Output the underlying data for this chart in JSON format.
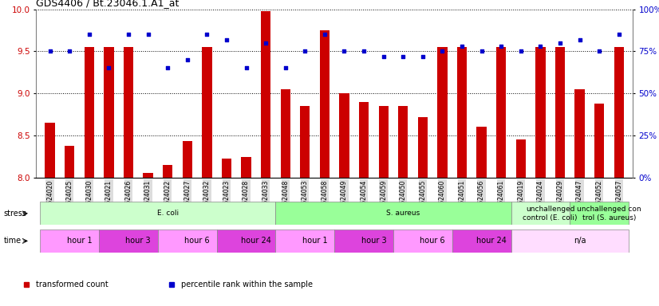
{
  "title": "GDS4406 / Bt.23046.1.A1_at",
  "samples": [
    "GSM624020",
    "GSM624025",
    "GSM624030",
    "GSM624021",
    "GSM624026",
    "GSM624031",
    "GSM624022",
    "GSM624027",
    "GSM624032",
    "GSM624023",
    "GSM624028",
    "GSM624033",
    "GSM624048",
    "GSM624053",
    "GSM624058",
    "GSM624049",
    "GSM624054",
    "GSM624059",
    "GSM624050",
    "GSM624055",
    "GSM624060",
    "GSM624051",
    "GSM624056",
    "GSM624061",
    "GSM624019",
    "GSM624024",
    "GSM624029",
    "GSM624047",
    "GSM624052",
    "GSM624057"
  ],
  "transformed_count": [
    8.65,
    8.38,
    9.55,
    9.55,
    9.55,
    8.05,
    8.15,
    8.43,
    9.55,
    8.22,
    8.24,
    9.98,
    9.05,
    8.85,
    9.75,
    9.0,
    8.9,
    8.85,
    8.85,
    8.72,
    9.55,
    9.55,
    8.6,
    9.55,
    8.45,
    9.55,
    9.55,
    9.05,
    8.88,
    9.55
  ],
  "percentile_rank": [
    75,
    75,
    85,
    65,
    85,
    85,
    65,
    70,
    85,
    82,
    65,
    80,
    65,
    75,
    85,
    75,
    75,
    72,
    72,
    72,
    75,
    78,
    75,
    78,
    75,
    78,
    80,
    82,
    75,
    85
  ],
  "ylim_left": [
    8.0,
    10.0
  ],
  "ylim_right": [
    0,
    100
  ],
  "yticks_left": [
    8.0,
    8.5,
    9.0,
    9.5,
    10.0
  ],
  "yticks_right": [
    0,
    25,
    50,
    75,
    100
  ],
  "bar_color": "#cc0000",
  "dot_color": "#0000cc",
  "stress_groups": [
    {
      "label": "E. coli",
      "start": 0,
      "end": 12,
      "color": "#ccffcc"
    },
    {
      "label": "S. aureus",
      "start": 12,
      "end": 24,
      "color": "#99ff99"
    },
    {
      "label": "unchallenged\ncontrol (E. coli)",
      "start": 24,
      "end": 27,
      "color": "#ccffcc"
    },
    {
      "label": "unchallenged con\ntrol (S. aureus)",
      "start": 27,
      "end": 30,
      "color": "#99ff99"
    }
  ],
  "time_groups": [
    {
      "label": "hour 1",
      "start": 0,
      "end": 3,
      "color": "#ff99ff"
    },
    {
      "label": "hour 3",
      "start": 3,
      "end": 6,
      "color": "#dd44dd"
    },
    {
      "label": "hour 6",
      "start": 6,
      "end": 9,
      "color": "#ff99ff"
    },
    {
      "label": "hour 24",
      "start": 9,
      "end": 12,
      "color": "#dd44dd"
    },
    {
      "label": "hour 1",
      "start": 12,
      "end": 15,
      "color": "#ff99ff"
    },
    {
      "label": "hour 3",
      "start": 15,
      "end": 18,
      "color": "#dd44dd"
    },
    {
      "label": "hour 6",
      "start": 18,
      "end": 21,
      "color": "#ff99ff"
    },
    {
      "label": "hour 24",
      "start": 21,
      "end": 24,
      "color": "#dd44dd"
    },
    {
      "label": "n/a",
      "start": 24,
      "end": 30,
      "color": "#ffddff"
    }
  ],
  "tick_bg_color": "#dddddd",
  "legend_items": [
    {
      "label": "transformed count",
      "color": "#cc0000",
      "marker": "s"
    },
    {
      "label": "percentile rank within the sample",
      "color": "#0000cc",
      "marker": "s"
    }
  ]
}
